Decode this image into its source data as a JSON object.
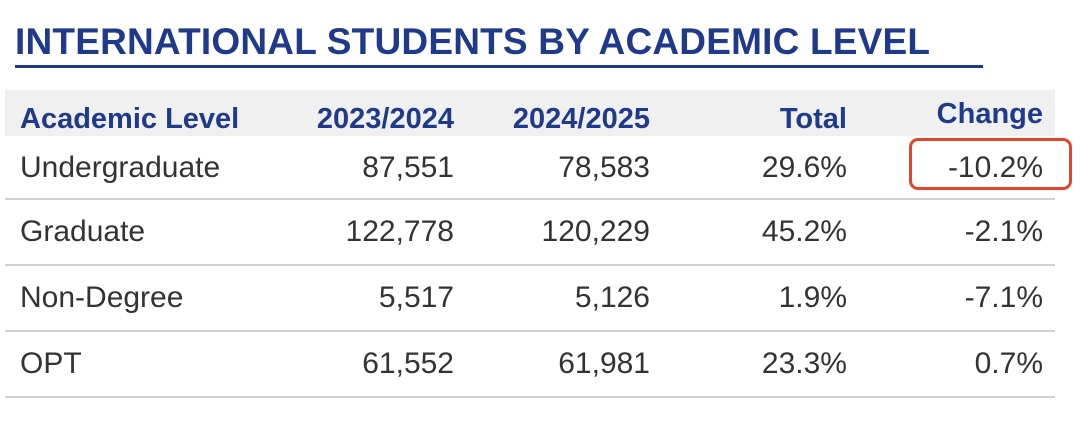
{
  "title": "INTERNATIONAL STUDENTS BY ACADEMIC LEVEL",
  "table": {
    "headers": {
      "level": "Academic Level",
      "y1": "2023/2024",
      "y2": "2024/2025",
      "total": "Total",
      "change": "Change"
    },
    "rows": [
      {
        "level": "Undergraduate",
        "y1": "87,551",
        "y2": "78,583",
        "total": "29.6%",
        "change": "-10.2%"
      },
      {
        "level": "Graduate",
        "y1": "122,778",
        "y2": "120,229",
        "total": "45.2%",
        "change": "-2.1%"
      },
      {
        "level": "Non-Degree",
        "y1": "5,517",
        "y2": "5,126",
        "total": "1.9%",
        "change": "-7.1%"
      },
      {
        "level": "OPT",
        "y1": "61,552",
        "y2": "61,981",
        "total": "23.3%",
        "change": "0.7%"
      }
    ]
  },
  "colors": {
    "title": "#1f3a8a",
    "header_text": "#1f3a8a",
    "body_text": "#333333",
    "highlight_border": "#e0462c",
    "header_bg": "#f0f0f0"
  }
}
